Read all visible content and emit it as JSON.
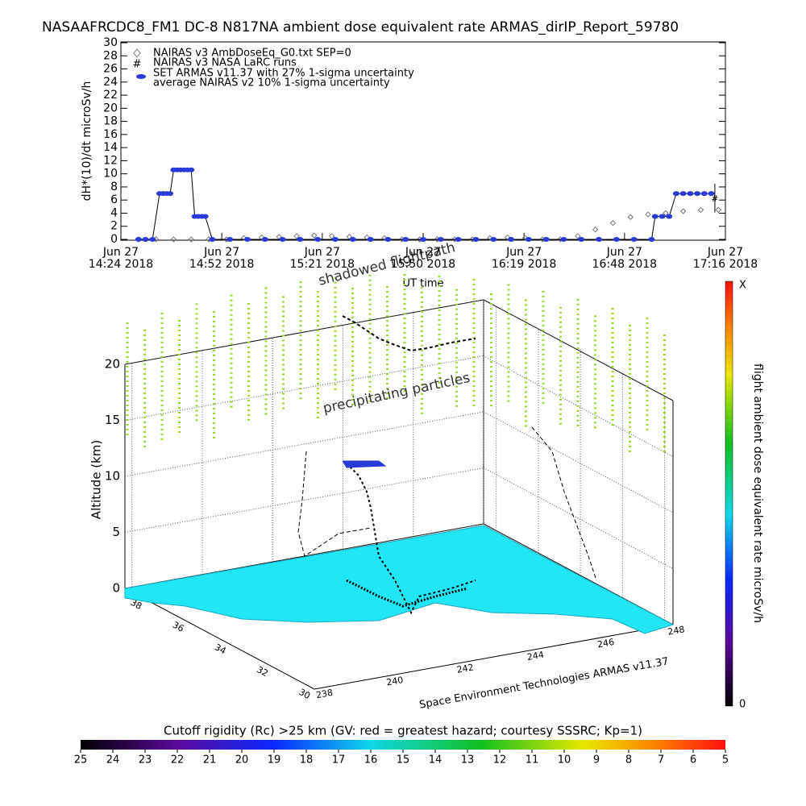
{
  "chart_data": [
    {
      "type": "line",
      "title": "NASAAFRCDC8_FM1 DC-8   N817NA ambient dose equivalent rate ARMAS_dirIP_Report_59780",
      "y_label": "dH*(10)/dt microSv/h",
      "x_label": "UT time",
      "xlim": [
        864,
        1036
      ],
      "xticks": [
        {
          "value": 864,
          "label": "Jun 27\n14:24 2018"
        },
        {
          "value": 892.7,
          "label": "Jun 27\n14:52 2018"
        },
        {
          "value": 921.3,
          "label": "Jun 27\n15:21 2018"
        },
        {
          "value": 950,
          "label": "Jun 27\n15:50 2018"
        },
        {
          "value": 978.7,
          "label": "Jun 27\n16:19 2018"
        },
        {
          "value": 1007.3,
          "label": "Jun 27\n16:48 2018"
        },
        {
          "value": 1036,
          "label": "Jun 27\n17:16 2018"
        }
      ],
      "ylim": [
        0,
        30
      ],
      "yticks": [
        0,
        2,
        4,
        6,
        8,
        10,
        12,
        14,
        16,
        18,
        20,
        22,
        24,
        26,
        28,
        30
      ],
      "series": [
        {
          "name": "NAIRAS v3 AmbDoseEq_G0.txt SEP=0",
          "color": "#777777",
          "marker": "diamond",
          "x": [
            869,
            874,
            879,
            884,
            889,
            894,
            899,
            904,
            909,
            914,
            919,
            924,
            929,
            934,
            939,
            944,
            949,
            954,
            959,
            964,
            969,
            974,
            979,
            984,
            989,
            994,
            999,
            1004,
            1009,
            1014,
            1019,
            1024,
            1029,
            1034
          ],
          "values": [
            0,
            0,
            0,
            0,
            0,
            0,
            0.2,
            0.3,
            0.4,
            0.5,
            0.6,
            0.5,
            0.4,
            0.3,
            0.2,
            0,
            0,
            0,
            0,
            0,
            0.2,
            0.3,
            0.2,
            0,
            0,
            0.5,
            1.5,
            2.5,
            3.4,
            3.8,
            4.0,
            4.3,
            4.5,
            4.5
          ]
        },
        {
          "name": "NAIRAS v3 NASA LaRC runs",
          "color": "#000000",
          "marker": "hash",
          "x": [
            1033
          ],
          "values": [
            6.3
          ],
          "errors": [
            2.2
          ]
        },
        {
          "name": "SET ARMAS v11.37 with 27% 1-sigma uncertainty",
          "color": "#2a3ad6",
          "marker": "circle",
          "x": [
            869,
            871,
            873,
            875,
            876,
            877,
            878,
            879,
            880,
            881,
            882,
            883,
            884,
            885,
            886,
            887,
            888,
            890,
            895,
            900,
            905,
            910,
            915,
            920,
            925,
            930,
            935,
            940,
            945,
            950,
            955,
            960,
            965,
            970,
            975,
            980,
            985,
            990,
            995,
            1000,
            1005,
            1010,
            1015,
            1016,
            1018,
            1020,
            1022,
            1024,
            1026,
            1028,
            1030,
            1032
          ],
          "values": [
            0,
            0,
            0,
            7,
            7,
            7,
            7,
            10.6,
            10.6,
            10.6,
            10.6,
            10.6,
            10.6,
            3.5,
            3.5,
            3.5,
            3.5,
            0,
            0,
            0,
            0,
            0,
            0,
            0,
            0,
            0,
            0,
            0,
            0,
            0,
            0,
            0,
            0,
            0,
            0,
            0,
            0,
            0,
            0,
            0,
            0,
            0,
            0,
            3.5,
            3.5,
            3.5,
            7,
            7,
            7,
            7,
            7,
            7
          ]
        }
      ],
      "legend_note": "average NAIRAS v2 10% 1-sigma uncertainty"
    },
    {
      "type": "scatter3d",
      "annotations": [
        "shadowed flightpath",
        "precipitating particles"
      ],
      "z_label": "Altitude (km)",
      "zlim": [
        0,
        20
      ],
      "zticks": [
        0,
        5,
        10,
        15,
        20
      ],
      "latlim": [
        29.6,
        38.6
      ],
      "latticks": [
        30,
        32,
        34,
        36,
        38
      ],
      "lonlim": [
        237.8,
        248
      ],
      "lonticks": [
        238,
        240,
        242,
        244,
        246,
        248
      ],
      "credit": "Space Environment Technologies ARMAS v11.37",
      "colorbar": {
        "label": "flight ambient dose equivalent rate microSv/h",
        "max_label": "X",
        "min_label": "0"
      }
    },
    {
      "type": "colorbar",
      "title": "Cutoff rigidity (Rc) >25 km (GV: red = greatest hazard; courtesy SSSRC; Kp=1)",
      "xlim": [
        25,
        5
      ],
      "xticks": [
        25,
        24,
        23,
        22,
        21,
        20,
        19,
        18,
        17,
        16,
        15,
        14,
        13,
        12,
        11,
        10,
        9,
        8,
        7,
        6,
        5
      ]
    }
  ]
}
